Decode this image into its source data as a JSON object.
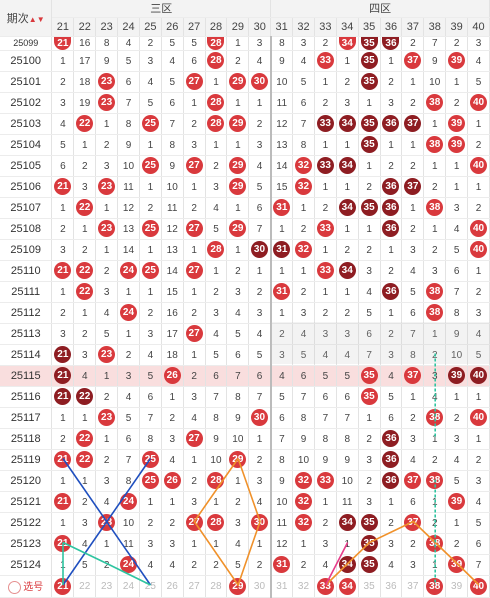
{
  "header": {
    "period_label": "期次",
    "sort_icon": "sort-up-down-icon",
    "zone3_label": "三区",
    "zone4_label": "四区",
    "columns": [
      "21",
      "22",
      "23",
      "24",
      "25",
      "26",
      "27",
      "28",
      "29",
      "30",
      "31",
      "32",
      "33",
      "34",
      "35",
      "36",
      "37",
      "38",
      "39",
      "40"
    ]
  },
  "colors": {
    "ball": "#d9393d",
    "ball_dark": "#8e1d22",
    "highlight_row": "#f9dede",
    "line_blue": "#1f4fbf",
    "line_orange": "#f0912a",
    "line_green": "#2ec4a0",
    "line_pink": "#e83c8a"
  },
  "rows": [
    {
      "period": "25099",
      "cells": [
        "b21",
        "16",
        "8",
        "4",
        "2",
        "5",
        "5",
        "b28",
        "1",
        "3",
        "8",
        "3",
        "2",
        "b34",
        "B35",
        "B36",
        "2",
        "7",
        "2",
        "3"
      ]
    },
    {
      "period": "25100",
      "cells": [
        "1",
        "17",
        "9",
        "5",
        "3",
        "4",
        "6",
        "b28",
        "2",
        "4",
        "9",
        "4",
        "b33",
        "1",
        "B35",
        "1",
        "b37",
        "9",
        "b39",
        "4"
      ]
    },
    {
      "period": "25101",
      "cells": [
        "2",
        "18",
        "b23",
        "6",
        "4",
        "5",
        "b27",
        "1",
        "b29",
        "b30",
        "10",
        "5",
        "1",
        "2",
        "B35",
        "2",
        "1",
        "10",
        "1",
        "5"
      ]
    },
    {
      "period": "25102",
      "cells": [
        "3",
        "19",
        "b23",
        "7",
        "5",
        "6",
        "1",
        "b28",
        "1",
        "1",
        "11",
        "6",
        "2",
        "3",
        "1",
        "3",
        "2",
        "b38",
        "2",
        "b40"
      ]
    },
    {
      "period": "25103",
      "cells": [
        "4",
        "b22",
        "1",
        "8",
        "b25",
        "7",
        "2",
        "b28",
        "b29",
        "2",
        "12",
        "7",
        "B33",
        "B34",
        "B35",
        "B36",
        "B37",
        "1",
        "b39",
        "1"
      ]
    },
    {
      "period": "25104",
      "cells": [
        "5",
        "1",
        "2",
        "9",
        "1",
        "8",
        "3",
        "1",
        "1",
        "3",
        "13",
        "8",
        "1",
        "1",
        "B35",
        "1",
        "1",
        "b38",
        "b39",
        "2"
      ]
    },
    {
      "period": "25105",
      "cells": [
        "6",
        "2",
        "3",
        "10",
        "b25",
        "9",
        "b27",
        "2",
        "b29",
        "4",
        "14",
        "b32",
        "B33",
        "B34",
        "1",
        "2",
        "2",
        "1",
        "1",
        "b40"
      ]
    },
    {
      "period": "25106",
      "cells": [
        "b21",
        "3",
        "b23",
        "11",
        "1",
        "10",
        "1",
        "3",
        "b29",
        "5",
        "15",
        "b32",
        "1",
        "1",
        "2",
        "B36",
        "B37",
        "2",
        "1",
        "1"
      ]
    },
    {
      "period": "25107",
      "cells": [
        "1",
        "b22",
        "1",
        "12",
        "2",
        "11",
        "2",
        "4",
        "1",
        "6",
        "b31",
        "1",
        "2",
        "B34",
        "B35",
        "B36",
        "1",
        "b38",
        "3",
        "2"
      ]
    },
    {
      "period": "25108",
      "cells": [
        "2",
        "1",
        "b23",
        "13",
        "b25",
        "12",
        "b27",
        "5",
        "b29",
        "7",
        "1",
        "2",
        "b33",
        "1",
        "1",
        "B36",
        "2",
        "1",
        "4",
        "b40"
      ]
    },
    {
      "period": "25109",
      "cells": [
        "3",
        "2",
        "1",
        "14",
        "1",
        "13",
        "1",
        "b28",
        "1",
        "B30",
        "B31",
        "b32",
        "1",
        "2",
        "2",
        "1",
        "3",
        "2",
        "5",
        "b40"
      ]
    },
    {
      "period": "25110",
      "cells": [
        "b21",
        "b22",
        "2",
        "b24",
        "b25",
        "14",
        "b27",
        "1",
        "2",
        "1",
        "1",
        "1",
        "b33",
        "B34",
        "3",
        "2",
        "4",
        "3",
        "6",
        "1"
      ]
    },
    {
      "period": "25111",
      "cells": [
        "1",
        "b22",
        "3",
        "1",
        "1",
        "15",
        "1",
        "2",
        "3",
        "2",
        "b31",
        "2",
        "1",
        "1",
        "4",
        "B36",
        "5",
        "b38",
        "7",
        "2"
      ]
    },
    {
      "period": "25112",
      "cells": [
        "2",
        "1",
        "4",
        "b24",
        "2",
        "16",
        "2",
        "3",
        "4",
        "3",
        "1",
        "3",
        "2",
        "2",
        "5",
        "1",
        "6",
        "b38",
        "8",
        "3"
      ]
    },
    {
      "period": "25113",
      "cells": [
        "3",
        "2",
        "5",
        "1",
        "3",
        "17",
        "b27",
        "4",
        "5",
        "4",
        "2",
        "4",
        "3",
        "3",
        "6",
        "2",
        "7",
        "1",
        "9",
        "4"
      ]
    },
    {
      "period": "25114",
      "cells": [
        "B21",
        "3",
        "b23",
        "2",
        "4",
        "18",
        "1",
        "5",
        "6",
        "5",
        "3",
        "5",
        "4",
        "4",
        "7",
        "3",
        "8",
        "2",
        "10",
        "5"
      ]
    },
    {
      "period": "25115",
      "cells": [
        "B21",
        "4",
        "1",
        "3",
        "5",
        "b26",
        "2",
        "6",
        "7",
        "6",
        "4",
        "6",
        "5",
        "5",
        "b35",
        "4",
        "b37",
        "3",
        "B39",
        "B40"
      ]
    },
    {
      "period": "25116",
      "cells": [
        "B21",
        "B22",
        "2",
        "4",
        "6",
        "1",
        "3",
        "7",
        "8",
        "7",
        "5",
        "7",
        "6",
        "6",
        "b35",
        "5",
        "1",
        "4",
        "1",
        "1"
      ]
    },
    {
      "period": "25117",
      "cells": [
        "1",
        "1",
        "b23",
        "5",
        "7",
        "2",
        "4",
        "8",
        "9",
        "b30",
        "6",
        "8",
        "7",
        "7",
        "1",
        "6",
        "2",
        "b38",
        "2",
        "b40"
      ]
    },
    {
      "period": "25118",
      "cells": [
        "2",
        "b22",
        "1",
        "6",
        "8",
        "3",
        "b27",
        "9",
        "10",
        "1",
        "7",
        "9",
        "8",
        "8",
        "2",
        "B36",
        "3",
        "1",
        "3",
        "1"
      ]
    },
    {
      "period": "25119",
      "cells": [
        "b21",
        "b22",
        "2",
        "7",
        "b25",
        "4",
        "1",
        "10",
        "b29",
        "2",
        "8",
        "10",
        "9",
        "9",
        "3",
        "B36",
        "4",
        "2",
        "4",
        "2"
      ]
    },
    {
      "period": "25120",
      "cells": [
        "1",
        "1",
        "3",
        "8",
        "b25",
        "b26",
        "2",
        "b28",
        "1",
        "3",
        "9",
        "b32",
        "b33",
        "10",
        "2",
        "B36",
        "b37",
        "b38",
        "5",
        "3"
      ]
    },
    {
      "period": "25121",
      "cells": [
        "b21",
        "2",
        "4",
        "b24",
        "1",
        "1",
        "3",
        "1",
        "2",
        "4",
        "10",
        "b32",
        "1",
        "11",
        "3",
        "1",
        "6",
        "1",
        "b39",
        "4"
      ]
    },
    {
      "period": "25122",
      "cells": [
        "1",
        "3",
        "b23",
        "10",
        "2",
        "2",
        "b27",
        "b28",
        "3",
        "b30",
        "11",
        "b32",
        "2",
        "B34",
        "B35",
        "2",
        "b37",
        "2",
        "1",
        "5"
      ]
    },
    {
      "period": "25123",
      "cells": [
        "b21",
        "4",
        "1",
        "11",
        "3",
        "3",
        "1",
        "1",
        "4",
        "1",
        "12",
        "1",
        "3",
        "1",
        "B35",
        "3",
        "2",
        "b38",
        "2",
        "6"
      ]
    },
    {
      "period": "25124",
      "cells": [
        "1",
        "5",
        "2",
        "b24",
        "4",
        "4",
        "2",
        "2",
        "5",
        "2",
        "b31",
        "2",
        "4",
        "B34",
        "B35",
        "4",
        "3",
        "1",
        "b39",
        "7"
      ]
    }
  ],
  "select_row": {
    "label": "选号",
    "balls": [
      "b21",
      "22",
      "23",
      "24",
      "25",
      "26",
      "27",
      "28",
      "b29",
      "30",
      "31",
      "32",
      "b33",
      "b34",
      "35",
      "36",
      "37",
      "b38",
      "39",
      "b40"
    ]
  }
}
